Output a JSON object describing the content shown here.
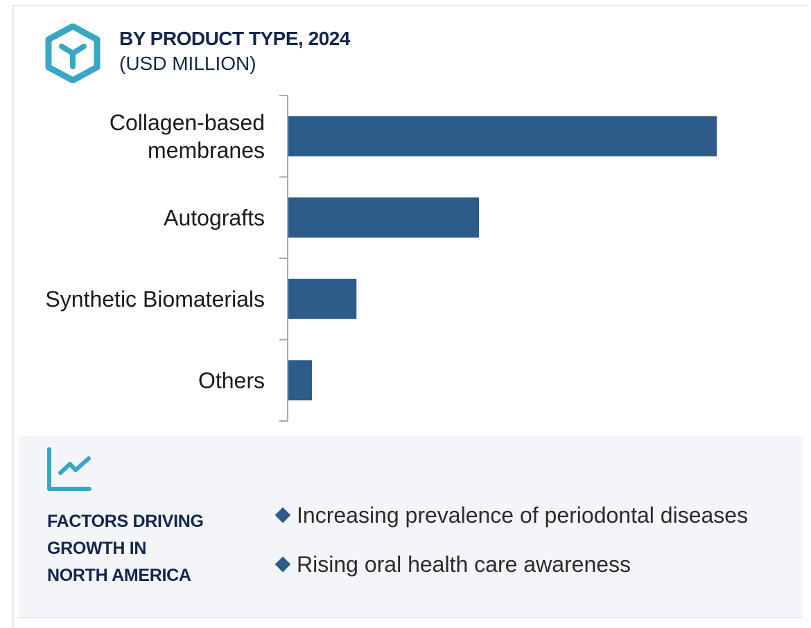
{
  "header": {
    "title": "BY PRODUCT TYPE, 2024",
    "subtitle": "(USD MILLION)",
    "icon": "hexagon-y-icon"
  },
  "chart_data": {
    "type": "bar",
    "orientation": "horizontal",
    "title": "BY PRODUCT TYPE, 2024 (USD MILLION)",
    "categories": [
      "Collagen-based membranes",
      "Autografts",
      "Synthetic Biomaterials",
      "Others"
    ],
    "category_lines": [
      [
        "Collagen-based",
        "membranes"
      ],
      [
        "Autografts"
      ],
      [
        "Synthetic Biomaterials"
      ],
      [
        "Others"
      ]
    ],
    "values": [
      100,
      44.5,
      15.9,
      5.5
    ],
    "value_note": "relative values (no value axis shown)",
    "xlim": [
      0,
      100
    ],
    "grid": false,
    "color": "#2d5b8a"
  },
  "factors": {
    "icon": "line-chart-icon",
    "title_lines": [
      "FACTORS DRIVING",
      "GROWTH IN",
      "NORTH AMERICA"
    ],
    "items": [
      "Increasing prevalence of periodontal diseases",
      "Rising oral health care awareness"
    ]
  },
  "colors": {
    "accent": "#3aa6c5",
    "navy": "#13264f",
    "bar": "#2d5b8a",
    "panel": "#f3f5f9"
  }
}
